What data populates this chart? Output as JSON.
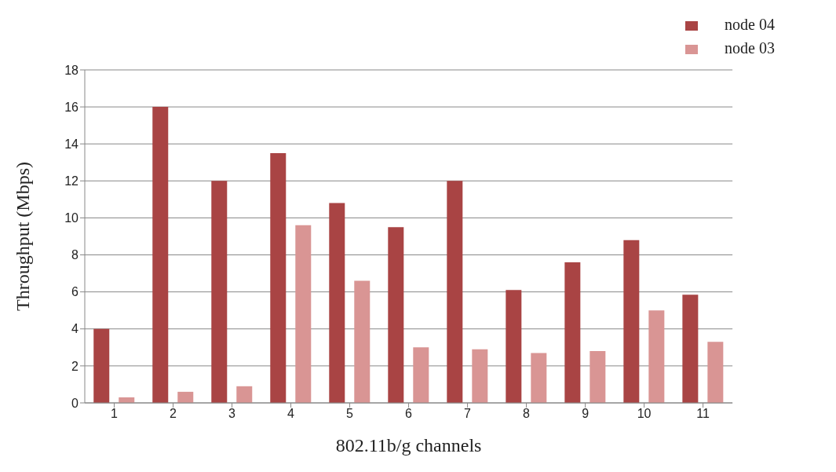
{
  "chart_data": {
    "type": "bar",
    "xlabel": "802.11b/g channels",
    "ylabel": "Throughput (Mbps)",
    "categories": [
      "1",
      "2",
      "3",
      "4",
      "5",
      "6",
      "7",
      "8",
      "9",
      "10",
      "11"
    ],
    "series": [
      {
        "name": "node 04",
        "color": "#a94444",
        "values": [
          4.0,
          16.0,
          12.0,
          13.5,
          10.8,
          9.5,
          12.0,
          6.1,
          7.6,
          8.8,
          5.85
        ]
      },
      {
        "name": "node 03",
        "color": "#d99594",
        "values": [
          0.3,
          0.6,
          0.9,
          9.6,
          6.6,
          3.0,
          2.9,
          2.7,
          2.8,
          5.0,
          3.3
        ]
      }
    ],
    "ylim": [
      0,
      18
    ],
    "yticks": [
      0,
      2,
      4,
      6,
      8,
      10,
      12,
      14,
      16,
      18
    ],
    "grid": "y",
    "legend": "top right"
  }
}
